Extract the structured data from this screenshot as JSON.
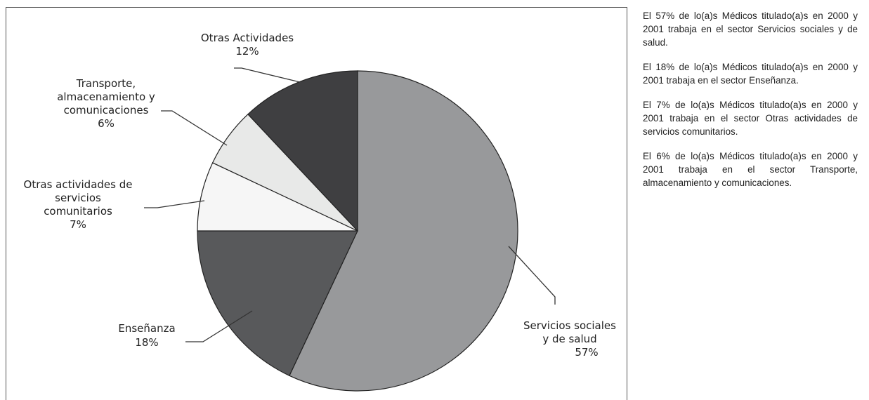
{
  "chart_data": {
    "type": "pie",
    "slices": [
      {
        "name": "Servicios sociales y de salud",
        "label_lines": [
          "Servicios sociales",
          "y de salud"
        ],
        "value": 57,
        "value_label": "57%",
        "color": "#98999b"
      },
      {
        "name": "Enseñanza",
        "label_lines": [
          "Enseñanza"
        ],
        "value": 18,
        "value_label": "18%",
        "color": "#58595b"
      },
      {
        "name": "Otras actividades de servicios comunitarios",
        "label_lines": [
          "Otras actividades de",
          "servicios",
          "comunitarios"
        ],
        "value": 7,
        "value_label": "7%",
        "color": "#f6f6f6"
      },
      {
        "name": "Transporte, almacenamiento y comunicaciones",
        "label_lines": [
          "Transporte,",
          "almacenamiento y",
          "comunicaciones"
        ],
        "value": 6,
        "value_label": "6%",
        "color": "#e8e9e8"
      },
      {
        "name": "Otras Actividades",
        "label_lines": [
          "Otras Actividades"
        ],
        "value": 12,
        "value_label": "12%",
        "color": "#3f3f41"
      }
    ]
  },
  "notes": [
    "El 57% de lo(a)s Médicos titulado(a)s en 2000 y 2001 trabaja en el sector Servicios sociales y de salud.",
    "El 18% de lo(a)s Médicos titulado(a)s en 2000 y 2001 trabaja en el sector Enseñanza.",
    "El 7% de lo(a)s Médicos titulado(a)s en 2000 y 2001 trabaja en el sector Otras actividades de servicios comunitarios.",
    "El 6% de lo(a)s Médicos titulado(a)s en 2000 y 2001 trabaja en el sector Transporte, almacenamiento y comunicaciones."
  ]
}
